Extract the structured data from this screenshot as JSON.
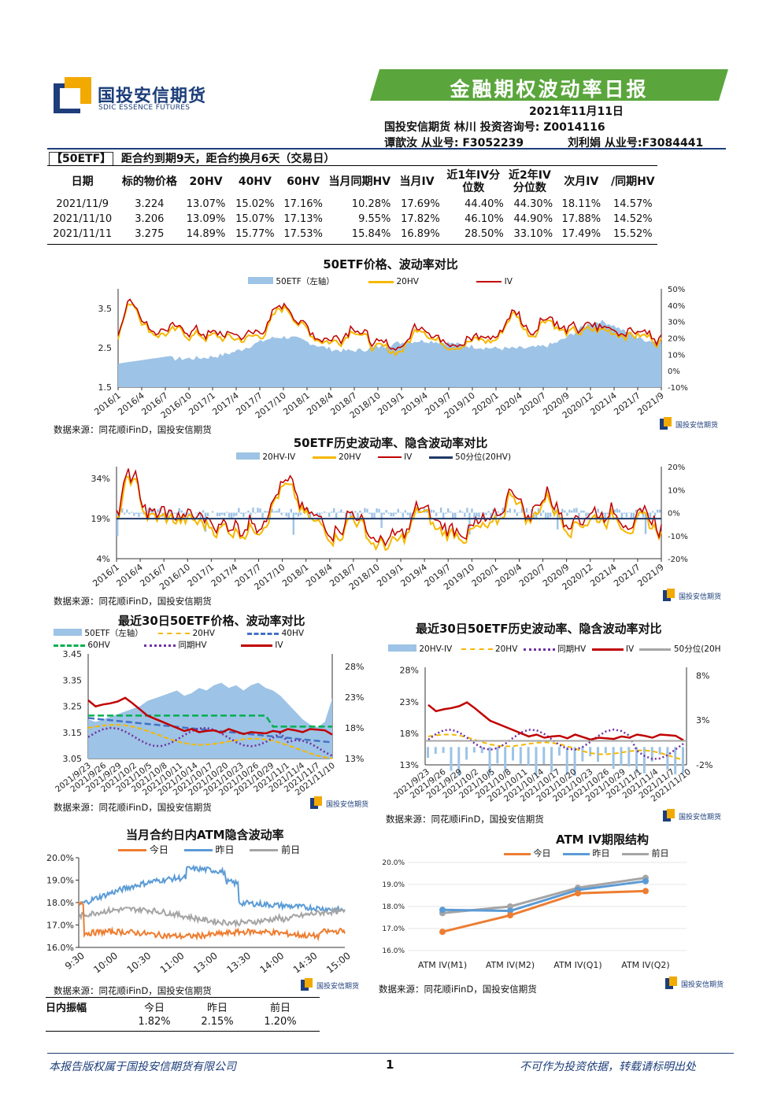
{
  "header": {
    "company_cn": "国投安信期货",
    "company_en": "SDIC ESSENCE FUTURES",
    "report_title": "金融期权波动率日报",
    "date": "2021年11月11日",
    "line2": "国投安信期货 林川 投资咨询号: Z0014116",
    "analyst1": "谭歆汝 从业号: F3052239",
    "analyst2": "刘利娟 从业号:F3084441"
  },
  "summary": {
    "tag": "【50ETF】",
    "note": "距合约到期9天，距合约换月6天（交易日）",
    "columns": [
      "日期",
      "标的物价格",
      "20HV",
      "40HV",
      "60HV",
      "当月同期HV",
      "当月IV",
      "近1年IV分位数",
      "近2年IV分位数",
      "次月IV",
      "/同期HV"
    ],
    "rows": [
      [
        "2021/11/9",
        "3.224",
        "13.07%",
        "15.02%",
        "17.16%",
        "10.28%",
        "17.69%",
        "44.40%",
        "44.30%",
        "18.11%",
        "14.57%"
      ],
      [
        "2021/11/10",
        "3.206",
        "13.09%",
        "15.07%",
        "17.13%",
        "9.55%",
        "17.82%",
        "46.10%",
        "44.90%",
        "17.88%",
        "14.52%"
      ],
      [
        "2021/11/11",
        "3.275",
        "14.89%",
        "15.77%",
        "17.53%",
        "15.84%",
        "16.89%",
        "28.50%",
        "33.10%",
        "17.49%",
        "15.52%"
      ]
    ]
  },
  "colors": {
    "blue_fill": "#9dc3e6",
    "yellow": "#f5b800",
    "red": "#c00000",
    "navy": "#1f3864",
    "purple": "#7030a0",
    "green": "#00b050",
    "dblue": "#4472c4",
    "orange": "#ed7d31",
    "sky": "#5b9bd5",
    "gray": "#a5a5a5",
    "banner": "#5aa63c"
  },
  "source": "数据来源：同花顺iFinD，国投安信期货",
  "chart_data": [
    {
      "type": "area",
      "title": "50ETF价格、波动率对比",
      "series": [
        {
          "name": "50ETF（左轴）"
        },
        {
          "name": "20HV"
        },
        {
          "name": "IV"
        }
      ],
      "y_left_ticks": [
        "3.5",
        "2.5",
        "1.5"
      ],
      "y_right_ticks": [
        "50%",
        "40%",
        "30%",
        "20%",
        "10%",
        "0%",
        "-10%"
      ],
      "x_ticks": [
        "2016/1",
        "2016/4",
        "2016/7",
        "2016/10",
        "2017/1",
        "2017/4",
        "2017/7",
        "2017/10",
        "2018/1",
        "2018/4",
        "2018/7",
        "2018/10",
        "2019/1",
        "2019/4",
        "2019/7",
        "2019/10",
        "2020/1",
        "2020/4",
        "2020/7",
        "2020/9",
        "2020/12",
        "2021/4",
        "2021/7",
        "2021/9"
      ]
    },
    {
      "type": "line",
      "title": "50ETF历史波动率、隐含波动率对比",
      "series": [
        {
          "name": "20HV-IV"
        },
        {
          "name": "20HV"
        },
        {
          "name": "IV"
        },
        {
          "name": "50分位(20HV)",
          "value": 19
        }
      ],
      "y_left_ticks": [
        "34%",
        "19%",
        "4%"
      ],
      "y_right_ticks": [
        "20%",
        "10%",
        "0%",
        "-10%",
        "-20%"
      ],
      "x_ticks": [
        "2016/1",
        "2016/4",
        "2016/7",
        "2016/10",
        "2017/1",
        "2017/4",
        "2017/7",
        "2017/10",
        "2018/1",
        "2018/4",
        "2018/7",
        "2018/10",
        "2019/1",
        "2019/4",
        "2019/7",
        "2019/10",
        "2020/1",
        "2020/4",
        "2020/7",
        "2020/9",
        "2020/12",
        "2021/4",
        "2021/7",
        "2021/9"
      ]
    },
    {
      "type": "line",
      "title": "最近30日50ETF价格、波动率对比",
      "series": [
        {
          "name": "50ETF（左轴）"
        },
        {
          "name": "20HV"
        },
        {
          "name": "40HV"
        },
        {
          "name": "60HV"
        },
        {
          "name": "同期HV"
        },
        {
          "name": "IV"
        }
      ],
      "y_left_ticks": [
        "3.45",
        "3.35",
        "3.25",
        "3.15",
        "3.05"
      ],
      "y_right_ticks": [
        "28%",
        "23%",
        "18%",
        "13%"
      ],
      "x_ticks": [
        "2021/9/23",
        "2021/9/26",
        "2021/9/29",
        "2021/10/2",
        "2021/10/5",
        "2021/10/8",
        "2021/10/11",
        "2021/10/14",
        "2021/10/17",
        "2021/10/20",
        "2021/10/23",
        "2021/10/26",
        "2021/10/29",
        "2021/11/1",
        "2021/11/4",
        "2021/11/7",
        "2021/11/10"
      ]
    },
    {
      "type": "line",
      "title": "最近30日50ETF历史波动率、隐含波动率对比",
      "series": [
        {
          "name": "20HV-IV"
        },
        {
          "name": "20HV"
        },
        {
          "name": "同期HV"
        },
        {
          "name": "IV"
        },
        {
          "name": "50分位(20H"
        }
      ],
      "y_left_ticks": [
        "28%",
        "23%",
        "18%",
        "13%"
      ],
      "y_right_ticks": [
        "8%",
        "3%",
        "-2%"
      ],
      "x_ticks": [
        "2021/9/23",
        "2021/9/26",
        "2021/9/29",
        "2021/10/2",
        "2021/10/5",
        "2021/10/8",
        "2021/10/11",
        "2021/10/14",
        "2021/10/17",
        "2021/10/20",
        "2021/10/23",
        "2021/10/26",
        "2021/10/29",
        "2021/11/1",
        "2021/11/4",
        "2021/11/7",
        "2021/11/10"
      ]
    },
    {
      "type": "line",
      "title": "当月合约日内ATM隐含波动率",
      "series": [
        {
          "name": "今日"
        },
        {
          "name": "昨日"
        },
        {
          "name": "前日"
        }
      ],
      "y_ticks": [
        "20.0%",
        "19.0%",
        "18.0%",
        "17.0%",
        "16.0%"
      ],
      "x_ticks": [
        "9:30",
        "10:00",
        "10:30",
        "11:00",
        "13:00",
        "13:30",
        "14:00",
        "14:30",
        "15:00"
      ]
    },
    {
      "type": "line",
      "title": "ATM IV期限结构",
      "categories": [
        "ATM IV(M1)",
        "ATM IV(M2)",
        "ATM IV(Q1)",
        "ATM IV(Q2)"
      ],
      "series": [
        {
          "name": "今日",
          "values": [
            16.85,
            17.6,
            18.6,
            18.7
          ]
        },
        {
          "name": "昨日",
          "values": [
            17.85,
            17.8,
            18.75,
            19.15
          ]
        },
        {
          "name": "前日",
          "values": [
            17.7,
            18.0,
            18.85,
            19.3
          ]
        }
      ],
      "y_ticks": [
        "20.0%",
        "19.0%",
        "18.0%",
        "17.0%",
        "16.0%"
      ],
      "ylim": [
        16,
        20
      ]
    }
  ],
  "intraday_range": {
    "label": "日内振幅",
    "cols": [
      "今日",
      "昨日",
      "前日"
    ],
    "vals": [
      "1.82%",
      "2.15%",
      "1.20%"
    ]
  },
  "footer": {
    "left": "本报告版权属于国投安信期货有限公司",
    "page": "1",
    "right": "不可作为投资依据，转载请标明出处"
  }
}
